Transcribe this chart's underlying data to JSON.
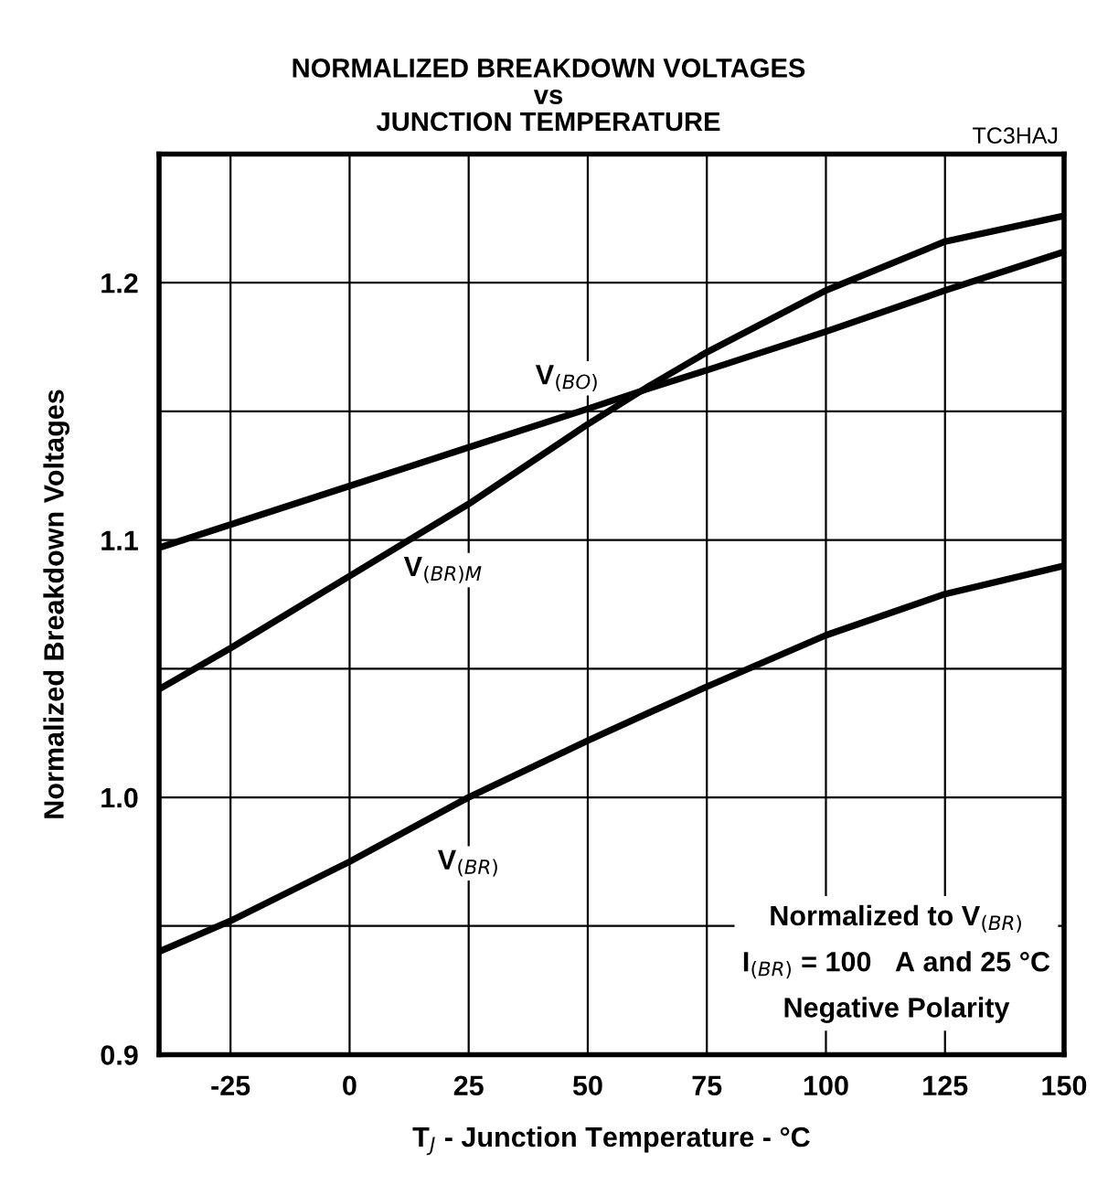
{
  "chart_data": {
    "type": "line",
    "title": "NORMALIZED BREAKDOWN VOLTAGES\nvs\nJUNCTION TEMPERATURE",
    "xlabel": "T$_{J}$ - Junction Temperature - °C",
    "ylabel": "Normalized Breakdown Voltages",
    "x": [
      -40,
      -25,
      0,
      25,
      50,
      63,
      75,
      100,
      125,
      150
    ],
    "series": [
      {
        "name": "V$_{(BO)}$",
        "color": "#000000",
        "values": [
          1.097,
          1.106,
          1.121,
          1.136,
          1.151,
          1.159,
          1.166,
          1.181,
          1.197,
          1.212
        ]
      },
      {
        "name": "V$_{(BR)M}$",
        "color": "#000000",
        "values": [
          1.042,
          1.058,
          1.086,
          1.114,
          1.145,
          1.16,
          1.173,
          1.197,
          1.216,
          1.226
        ]
      },
      {
        "name": "V$_{(BR)}$",
        "color": "#000000",
        "values": [
          0.94,
          0.952,
          0.975,
          1.0,
          1.022,
          1.033,
          1.043,
          1.063,
          1.079,
          1.09
        ]
      }
    ],
    "xlim": [
      -40,
      150
    ],
    "xticks": [
      -25,
      0,
      25,
      50,
      75,
      100,
      125,
      150
    ],
    "ylim": [
      0.9,
      1.25
    ],
    "yticks": [
      {
        "value": 0.9,
        "label": "0.9"
      },
      {
        "value": 0.95,
        "label": null
      },
      {
        "value": 1.0,
        "label": "1.0"
      },
      {
        "value": 1.05,
        "label": null
      },
      {
        "value": 1.1,
        "label": "1.1"
      },
      {
        "value": 1.15,
        "label": null
      },
      {
        "value": 1.2,
        "label": "1.2"
      }
    ],
    "grid": true,
    "line_style": "solid",
    "marker": "none",
    "annotations": [
      "TC3HAJ",
      "Normalized to V$_{(BR)}$\nI$_{(BR)}$ = 100   A and 25 °C\nNegative Polarity"
    ]
  }
}
